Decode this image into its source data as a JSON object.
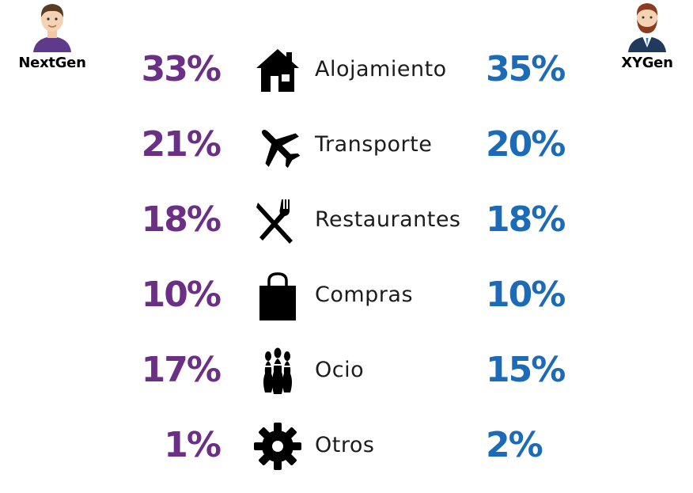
{
  "colors": {
    "left": "#6b2f86",
    "right": "#1b6bb8",
    "label": "#1c1c1c"
  },
  "personas": {
    "left": {
      "name": "NextGen",
      "icon": "young-man-avatar-icon"
    },
    "right": {
      "name": "XYGen",
      "icon": "bearded-man-suit-avatar-icon"
    }
  },
  "chart_data": {
    "type": "table",
    "series": [
      {
        "name": "NextGen",
        "values": [
          33,
          21,
          18,
          10,
          17,
          1
        ]
      },
      {
        "name": "XYGen",
        "values": [
          35,
          20,
          18,
          10,
          15,
          2
        ]
      }
    ],
    "categories": [
      "Alojamiento",
      "Transporte",
      "Restaurantes",
      "Compras",
      "Ocio",
      "Otros"
    ],
    "icons": [
      "house-icon",
      "airplane-icon",
      "fork-knife-icon",
      "shopping-bag-icon",
      "bowling-pins-icon",
      "gear-icon"
    ],
    "unit": "%"
  }
}
